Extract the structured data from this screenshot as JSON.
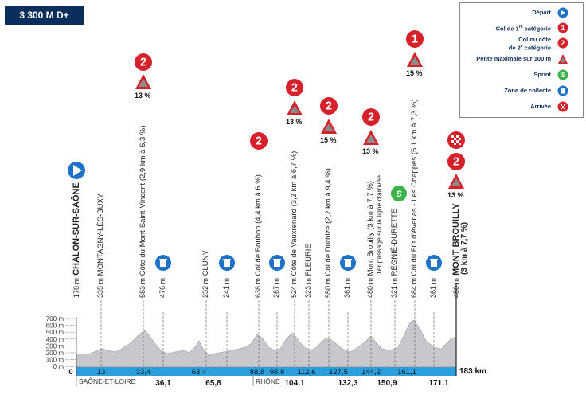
{
  "header": {
    "elevation_badge": "3 300 M D+"
  },
  "legend": {
    "items": [
      {
        "label": "Départ",
        "icon": "start-icon"
      },
      {
        "label": "Col de 1re catégorie",
        "icon": "cat1-icon"
      },
      {
        "label": "Col ou côte de 2e catégorie",
        "icon": "cat2-icon"
      },
      {
        "label": "Pente maximale sur 100 m",
        "icon": "max-slope-icon"
      },
      {
        "label": "Sprint",
        "icon": "sprint-icon"
      },
      {
        "label": "Zone de collecte",
        "icon": "collection-zone-icon"
      },
      {
        "label": "Arrivée",
        "icon": "finish-icon"
      }
    ]
  },
  "places": [
    {
      "alt": "178 m",
      "name": "CHALON-SUR-SAÔNE",
      "bold": true
    },
    {
      "alt": "335 m",
      "name": "MONTAGNY-LÈS-BUXY"
    },
    {
      "alt": "583 m",
      "name": "Côte du Mont-Saint-Vincent (2,9 km à 6,3 %)"
    },
    {
      "alt": "476 m",
      "name": ""
    },
    {
      "alt": "232 m",
      "name": "CLUNY"
    },
    {
      "alt": "241 m",
      "name": ""
    },
    {
      "alt": "638 m",
      "name": "Col de Boubon (4,4 km à 6 %)"
    },
    {
      "alt": "267 m",
      "name": ""
    },
    {
      "alt": "524 m",
      "name": "Côte de Vauxrenard (3,2 km à 6,7 %)"
    },
    {
      "alt": "323 m",
      "name": "FLEURIE"
    },
    {
      "alt": "550 m",
      "name": "Col de Durbize (2,2 km à 9,4 %)"
    },
    {
      "alt": "361 m",
      "name": ""
    },
    {
      "alt": "480 m",
      "name": "Mont Brouilly (3 km à 7,7 %)",
      "sub": "1er passage sur la ligne d'arrivée"
    },
    {
      "alt": "321 m",
      "name": "RÉGNIÉ-DURETTE"
    },
    {
      "alt": "684 m",
      "name": "Col du Fût d'Avenas - Les Chappes (5,1 km à 7,3 %)"
    },
    {
      "alt": "361 m",
      "name": ""
    },
    {
      "alt": "480 m",
      "name": "MONT BROUILLY",
      "sub": "(3 km à 7,7 %)",
      "bold": true
    }
  ],
  "climb_slopes": [
    "13 %",
    "13 %",
    "15 %",
    "13 %",
    "15 %",
    "13 %"
  ],
  "category_markers": [
    "2",
    "2",
    "2",
    "2",
    "2",
    "1",
    "2"
  ],
  "y_axis": [
    "700 m",
    "600 m",
    "500 m",
    "400 m",
    "300 m",
    "200 m",
    "100 m",
    "0 m"
  ],
  "km_marks_top": [
    "0",
    "13",
    "33,4",
    "63,4",
    "88,8",
    "98,8",
    "112,6",
    "127,5",
    "144,2",
    "161,1"
  ],
  "km_marks_bottom": [
    "36,1",
    "65,8",
    "104,1",
    "132,3",
    "150,9",
    "171,1"
  ],
  "total_distance": "183 km",
  "regions": [
    "SAÔNE-ET-LOIRE",
    "RHÔNE"
  ],
  "colors": {
    "navy": "#0b2f5c",
    "blue": "#1e73c8",
    "red": "#d6202a",
    "green": "#3bb24a",
    "track": "#2a9fdc",
    "terrain": "#c7c7cc"
  }
}
